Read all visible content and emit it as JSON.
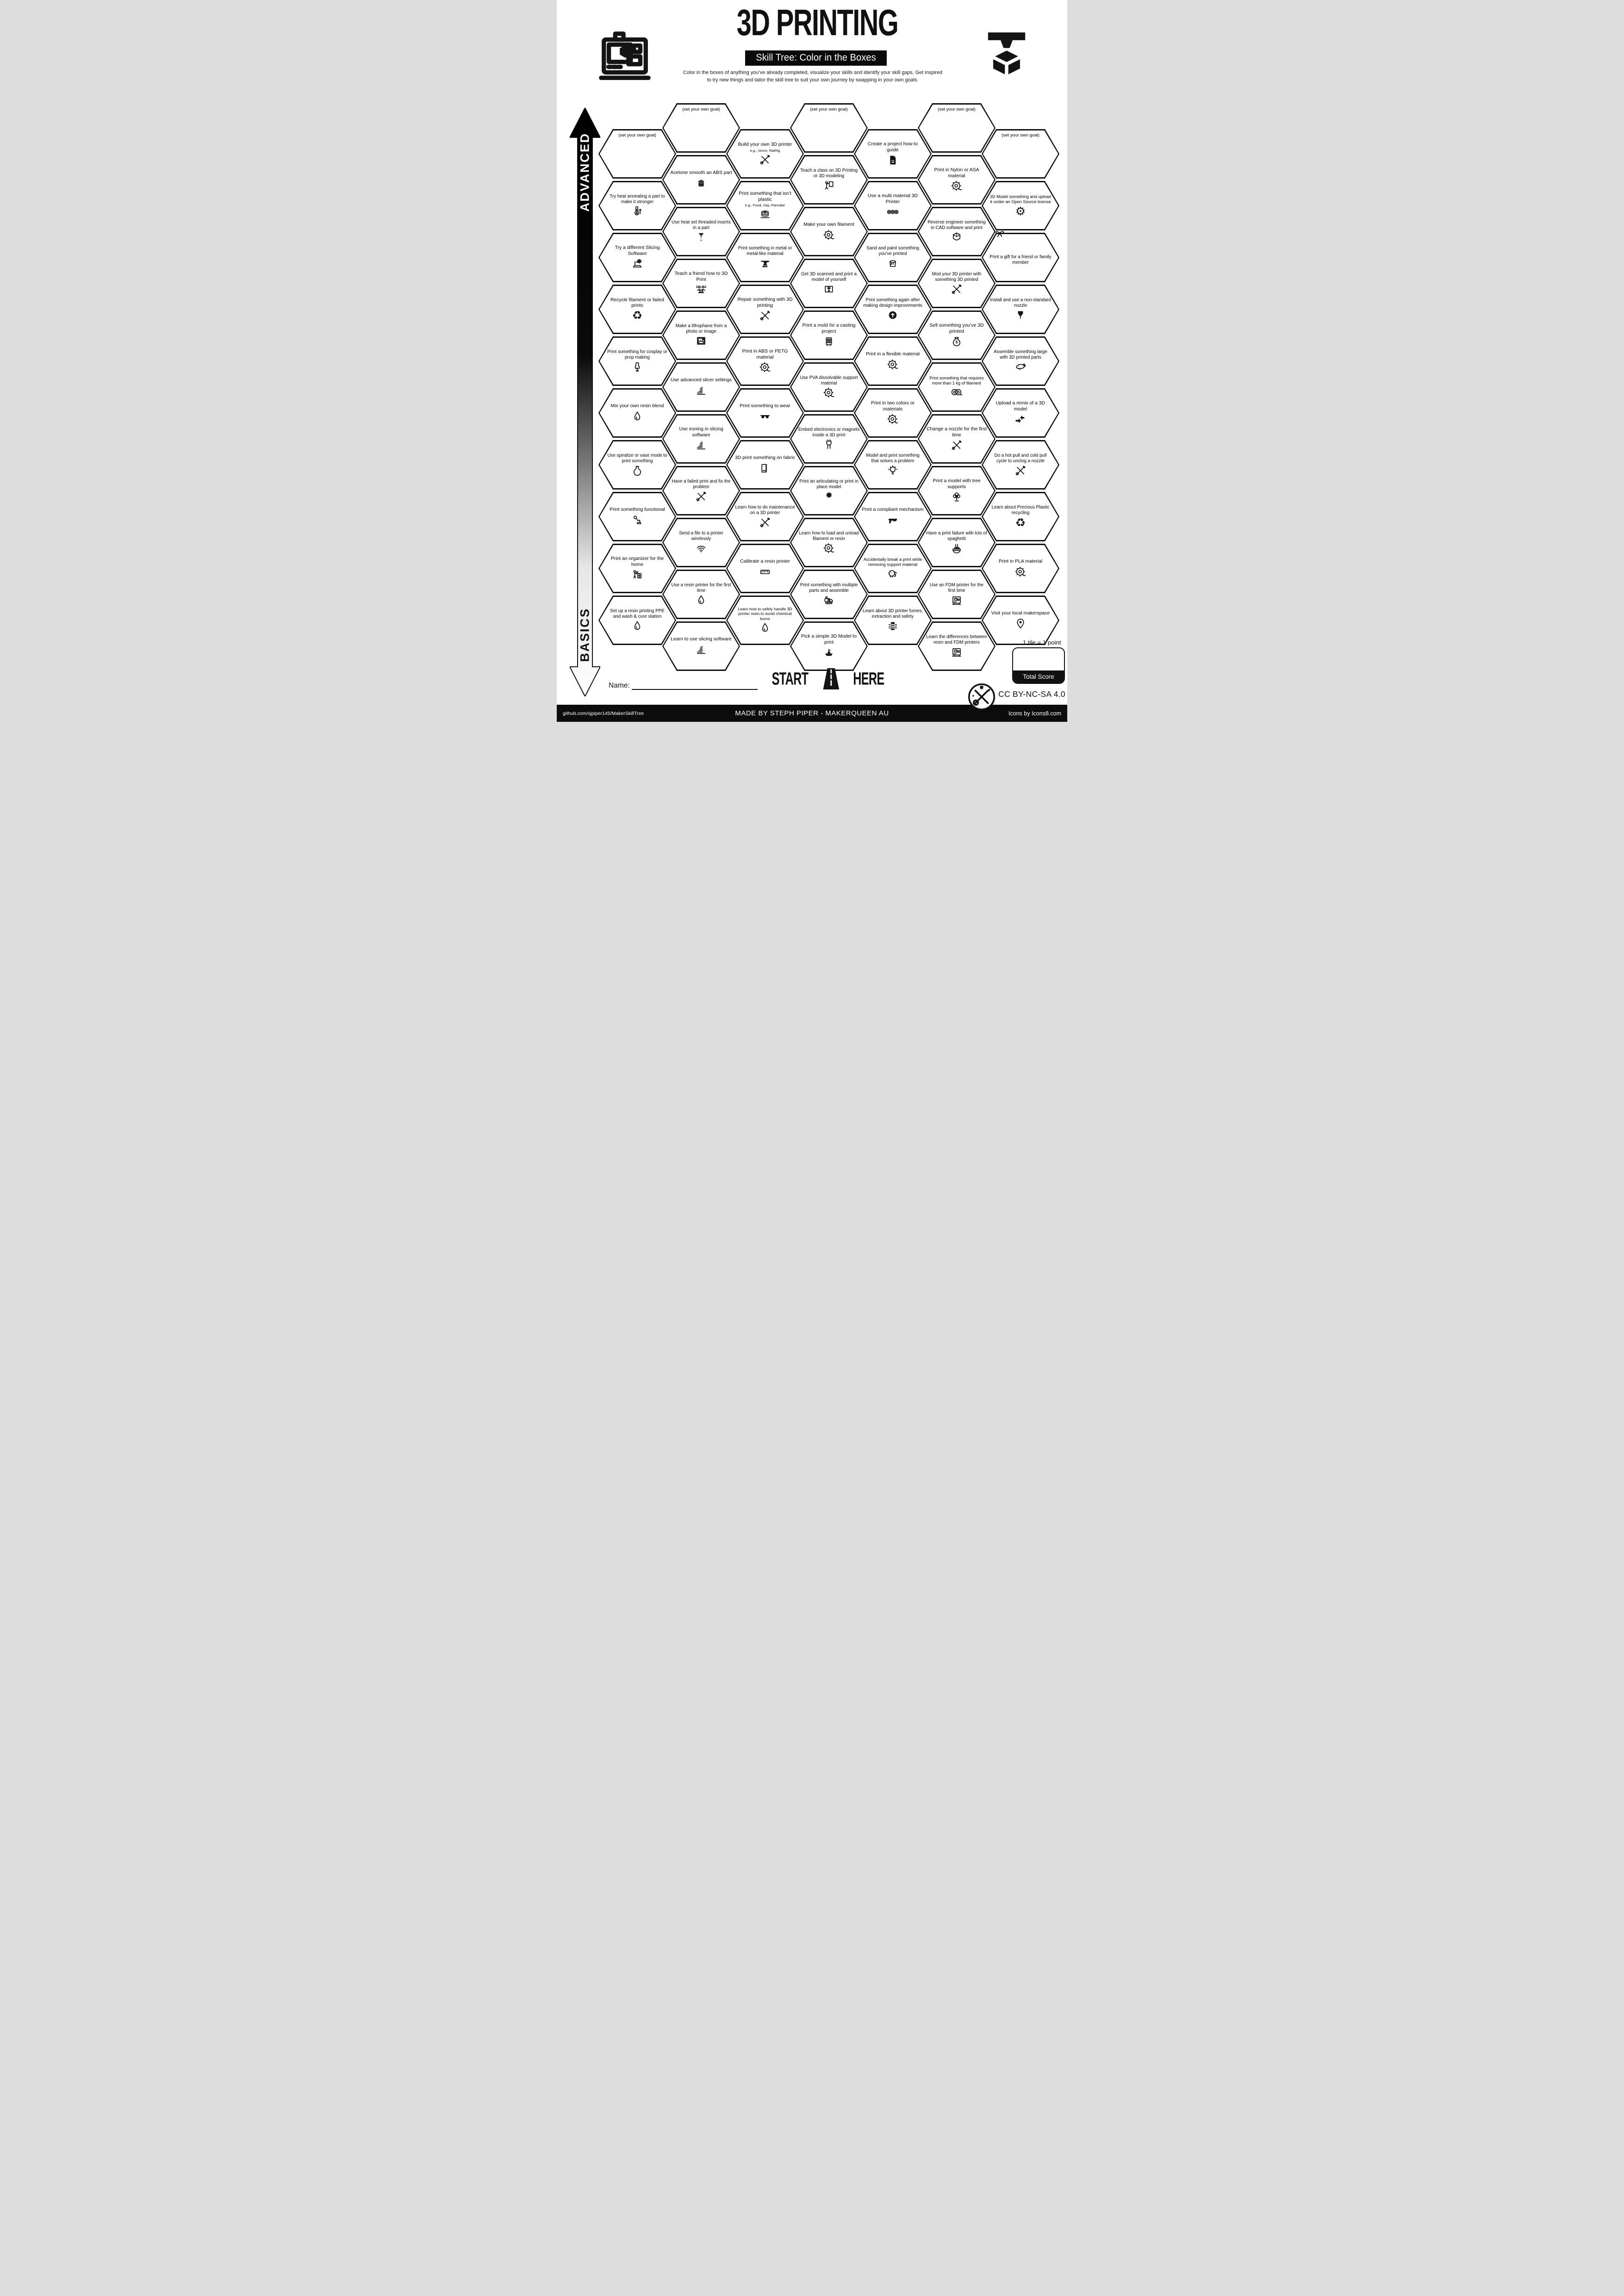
{
  "page": {
    "title": "3D PRINTING",
    "subtitle": "Skill Tree: Color in the Boxes",
    "description_line1": "Color in the boxes of anything you’ve already completed, visualize your skills and identify your skill gaps.  Get inspired",
    "description_line2": "to try new things and tailor the skill tree to suit your own journey by swapping in your own goals.",
    "axis_top_label": "ADVANCED",
    "axis_bottom_label": "BASICS",
    "start_label": "START",
    "here_label": "HERE",
    "name_label": "Name:",
    "tile_note": "1 tile = 1 point",
    "total_score_label": "Total Score",
    "license": "CC BY-NC-SA 4.0",
    "footer_left": "github.com/sjpiper145/MakerSkillTree",
    "footer_center": "MADE BY STEPH PIPER  -  MAKERQUEEN AU",
    "footer_right": "Icons by Icons8.com",
    "accent_color": "#000000",
    "background_color": "#ffffff"
  },
  "skill_tree": {
    "columns": [
      {
        "tiles": [
          {
            "label": "(set your own goal)",
            "goal": true
          },
          {
            "label": "Try heat annealing a part to make it stronger",
            "icon": "thermometer-up-icon"
          },
          {
            "label": "Try a different Slicing Software",
            "icon": "laptop-gear-icon"
          },
          {
            "label": "Recycle filament or failed prints",
            "icon": "recycle-icon"
          },
          {
            "label": "Print something for cosplay or prop making",
            "icon": "mannequin-icon"
          },
          {
            "label": "Mix your own resin blend",
            "icon": "resin-drop-icon"
          },
          {
            "label": "Use spiralize or vase mode to print something",
            "icon": "vase-icon"
          },
          {
            "label": "Print something functional",
            "icon": "desk-lamp-icon"
          },
          {
            "label": "Print an organizer for the home",
            "icon": "organizer-icon"
          },
          {
            "label": "Set up a resin printing PPE and wash & cure station",
            "icon": "resin-drop-icon"
          }
        ]
      },
      {
        "tiles": [
          {
            "label": "(set your own goal)",
            "goal": true
          },
          {
            "label": "Acetone smooth an ABS part",
            "icon": "acetone-box-icon"
          },
          {
            "label": "Use heat set threaded inserts in a part",
            "icon": "threaded-insert-icon"
          },
          {
            "label": "Teach a friend how to 3D Print",
            "icon": "two-people-laptop-icon"
          },
          {
            "label": "Make a lithophane from a photo or image",
            "icon": "photo-icon"
          },
          {
            "label": "Use advanced slicer settings",
            "icon": "slicer-layers-icon"
          },
          {
            "label": "Use ironing in slicing software",
            "icon": "slicer-layers-icon"
          },
          {
            "label": "Have a failed print and fix the problem",
            "icon": "crossed-tools-icon"
          },
          {
            "label": "Send a file to a printer wirelessly",
            "icon": "wifi-icon"
          },
          {
            "label": "Use a resin printer for the first time",
            "icon": "resin-drop-icon"
          },
          {
            "label": "Learn to use slicing software",
            "icon": "slicer-layers-icon"
          }
        ]
      },
      {
        "tiles": [
          {
            "label": "Build your own 3D printer",
            "sub": "e.g., Voron, RatRig",
            "icon": "crossed-tools-icon"
          },
          {
            "label": "Print something that isn’t plastic",
            "sub": "e.g., Food, clay, Pancake",
            "icon": "pancake-stack-icon"
          },
          {
            "label": "Print something in metal or metal-like material",
            "icon": "anvil-icon"
          },
          {
            "label": "Repair something with 3D printing",
            "icon": "crossed-tools-icon"
          },
          {
            "label": "Print in ABS or PETG material",
            "icon": "filament-spool-icon"
          },
          {
            "label": "Print something to wear",
            "icon": "sunglasses-icon"
          },
          {
            "label": "3D print something on fabric",
            "icon": "fabric-roll-icon"
          },
          {
            "label": "Learn how to do maintenance on a 3D printer",
            "icon": "crossed-tools-icon"
          },
          {
            "label": "Calibrate a resin printer",
            "icon": "ruler-icon"
          },
          {
            "label": "Learn how to safely handle 3D printer resin to avoid chemical burns",
            "icon": "resin-drop-icon"
          }
        ]
      },
      {
        "tiles": [
          {
            "label": "(set your own goal)",
            "goal": true
          },
          {
            "label": "Teach a class on 3D Printing or 3D modeling",
            "icon": "teacher-board-icon"
          },
          {
            "label": "Make your own filament",
            "icon": "filament-spool-icon"
          },
          {
            "label": "Get 3D scanned and print a model of yourself",
            "icon": "body-scan-icon"
          },
          {
            "label": "Print a mold for a casting project",
            "icon": "mold-tray-icon"
          },
          {
            "label": "Use PVA dissolvable support material",
            "icon": "filament-spool-icon"
          },
          {
            "label": "Embed electronics or magnets inside a 3D print",
            "icon": "plug-icon"
          },
          {
            "label": "Print an articulating or print in place model",
            "icon": "dragon-icon"
          },
          {
            "label": "Learn how to load and unload filament or resin",
            "icon": "filament-spool-icon"
          },
          {
            "label": "Print something with multiple parts and assemble",
            "icon": "toy-train-icon"
          },
          {
            "label": "Pick a simple 3D Model to print",
            "icon": "benchy-boat-icon"
          }
        ]
      },
      {
        "tiles": [
          {
            "label": "Create a project how-to guide",
            "icon": "document-smile-icon"
          },
          {
            "label": "Use a multi material 3D Printer",
            "icon": "multi-spool-icon"
          },
          {
            "label": "Sand and paint something you’ve printed",
            "icon": "paint-bucket-icon"
          },
          {
            "label": "Print something again after making design improvements",
            "icon": "circular-arrow-icon"
          },
          {
            "label": "Print in a flexible material",
            "icon": "filament-spool-icon"
          },
          {
            "label": "Print in two colors or materials",
            "icon": "filament-spool-icon"
          },
          {
            "label": "Model and print something that solves a problem",
            "icon": "lightbulb-icon"
          },
          {
            "label": "Print a compliant mechanism",
            "icon": "toy-gun-icon"
          },
          {
            "label": "Accidentally break a print while removing support material",
            "icon": "elephant-icon"
          },
          {
            "label": "Learn about 3D printer fumes, extraction and safety",
            "icon": "book-fumes-icon"
          }
        ]
      },
      {
        "tiles": [
          {
            "label": "(set your own goal)",
            "goal": true
          },
          {
            "label": "Print in Nylon or ASA material",
            "icon": "filament-spool-icon"
          },
          {
            "label": "Reverse engineer something in CAD software and print",
            "icon": "wireframe-cube-icon"
          },
          {
            "label": "Mod your 3D printer with something 3D printed",
            "icon": "crossed-tools-icon"
          },
          {
            "label": "Sell something you’ve 3D printed",
            "icon": "money-bag-icon"
          },
          {
            "label": "Print something that requires more than 1 kg of filament",
            "icon": "double-spool-icon"
          },
          {
            "label": "Change a nozzle for the first time",
            "icon": "crossed-tools-icon"
          },
          {
            "label": "Print a model with tree supports",
            "icon": "tree-icon"
          },
          {
            "label": "Have a print failure with lots of spaghetti",
            "icon": "spaghetti-bowl-icon"
          },
          {
            "label": "Use an FDM printer for the first time",
            "icon": "fdm-printer-icon"
          },
          {
            "label": "Learn the differences between resin and FDM printers",
            "icon": "fdm-printer-icon"
          }
        ]
      },
      {
        "tiles": [
          {
            "label": "(set your own goal)",
            "goal": true
          },
          {
            "label": "3D Model something and upload it under an Open Source license",
            "icon": "open-source-gear-icon"
          },
          {
            "label": "Print a gift for a friend or family member",
            "icon": "gift-bow-icon",
            "icon_overlap": true
          },
          {
            "label": "Install and use a non-standard nozzle",
            "icon": "nozzle-icon"
          },
          {
            "label": "Assemble something large with 3D printed parts",
            "icon": "whale-icon"
          },
          {
            "label": "Upload a remix of a 3D model",
            "icon": "remix-arrows-icon"
          },
          {
            "label": "Do a hot pull and cold pull cycle to unclog a nozzle",
            "icon": "crossed-tools-icon"
          },
          {
            "label": "Learn about Precious Plastic recycling",
            "icon": "recycle-icon"
          },
          {
            "label": "Print in PLA material",
            "icon": "filament-spool-icon"
          },
          {
            "label": "Visit your local makerspace",
            "icon": "map-pin-icon"
          }
        ]
      }
    ]
  },
  "icon_render": {
    "thermometer-up-icon": {
      "kind": "svg",
      "sym": "i-thermo"
    },
    "laptop-gear-icon": {
      "kind": "svg",
      "sym": "i-laptopgear"
    },
    "recycle-icon": {
      "kind": "glyph",
      "ch": "♻"
    },
    "mannequin-icon": {
      "kind": "svg",
      "sym": "i-mannequin"
    },
    "resin-drop-icon": {
      "kind": "svg",
      "sym": "i-droplet"
    },
    "vase-icon": {
      "kind": "svg",
      "sym": "i-vase"
    },
    "desk-lamp-icon": {
      "kind": "svg",
      "sym": "i-lamp"
    },
    "organizer-icon": {
      "kind": "svg",
      "sym": "i-organizer"
    },
    "acetone-box-icon": {
      "kind": "svg",
      "sym": "i-basket"
    },
    "threaded-insert-icon": {
      "kind": "svg",
      "sym": "i-screw"
    },
    "two-people-laptop-icon": {
      "kind": "svg",
      "sym": "i-people"
    },
    "photo-icon": {
      "kind": "svg",
      "sym": "i-photo"
    },
    "slicer-layers-icon": {
      "kind": "svg",
      "sym": "i-layers"
    },
    "crossed-tools-icon": {
      "kind": "svg",
      "sym": "i-tools"
    },
    "wifi-icon": {
      "kind": "svg",
      "sym": "i-wifi"
    },
    "pancake-stack-icon": {
      "kind": "svg",
      "sym": "i-pancakes"
    },
    "anvil-icon": {
      "kind": "svg",
      "sym": "i-anvil"
    },
    "filament-spool-icon": {
      "kind": "svg",
      "sym": "i-spool"
    },
    "sunglasses-icon": {
      "kind": "svg",
      "sym": "i-sunglasses"
    },
    "fabric-roll-icon": {
      "kind": "svg",
      "sym": "i-fabric"
    },
    "ruler-icon": {
      "kind": "svg",
      "sym": "i-ruler"
    },
    "teacher-board-icon": {
      "kind": "svg",
      "sym": "i-teacher"
    },
    "body-scan-icon": {
      "kind": "svg",
      "sym": "i-scan"
    },
    "mold-tray-icon": {
      "kind": "svg",
      "sym": "i-mold"
    },
    "plug-icon": {
      "kind": "svg",
      "sym": "i-plug"
    },
    "dragon-icon": {
      "kind": "svg",
      "sym": "i-dragon"
    },
    "toy-train-icon": {
      "kind": "svg",
      "sym": "i-train"
    },
    "benchy-boat-icon": {
      "kind": "svg",
      "sym": "i-boat"
    },
    "document-smile-icon": {
      "kind": "svg",
      "sym": "i-doc"
    },
    "multi-spool-icon": {
      "kind": "svg",
      "sym": "i-spool5"
    },
    "paint-bucket-icon": {
      "kind": "svg",
      "sym": "i-bucket"
    },
    "circular-arrow-icon": {
      "kind": "svg",
      "sym": "i-arrowcircle"
    },
    "lightbulb-icon": {
      "kind": "svg",
      "sym": "i-bulb"
    },
    "toy-gun-icon": {
      "kind": "svg",
      "sym": "i-gun"
    },
    "elephant-icon": {
      "kind": "svg",
      "sym": "i-elephant"
    },
    "book-fumes-icon": {
      "kind": "svg",
      "sym": "i-fumes"
    },
    "wireframe-cube-icon": {
      "kind": "svg",
      "sym": "i-cube"
    },
    "money-bag-icon": {
      "kind": "svg",
      "sym": "i-moneybag"
    },
    "double-spool-icon": {
      "kind": "svg",
      "sym": "i-spool2"
    },
    "tree-icon": {
      "kind": "svg",
      "sym": "i-tree"
    },
    "spaghetti-bowl-icon": {
      "kind": "svg",
      "sym": "i-noodles"
    },
    "fdm-printer-icon": {
      "kind": "svg",
      "sym": "i-printer"
    },
    "open-source-gear-icon": {
      "kind": "glyph",
      "ch": "⚙"
    },
    "gift-bow-icon": {
      "kind": "svg",
      "sym": "i-gift"
    },
    "nozzle-icon": {
      "kind": "svg",
      "sym": "i-nozzle"
    },
    "whale-icon": {
      "kind": "svg",
      "sym": "i-whale"
    },
    "remix-arrows-icon": {
      "kind": "svg",
      "sym": "i-remix"
    },
    "map-pin-icon": {
      "kind": "svg",
      "sym": "i-pin"
    }
  }
}
